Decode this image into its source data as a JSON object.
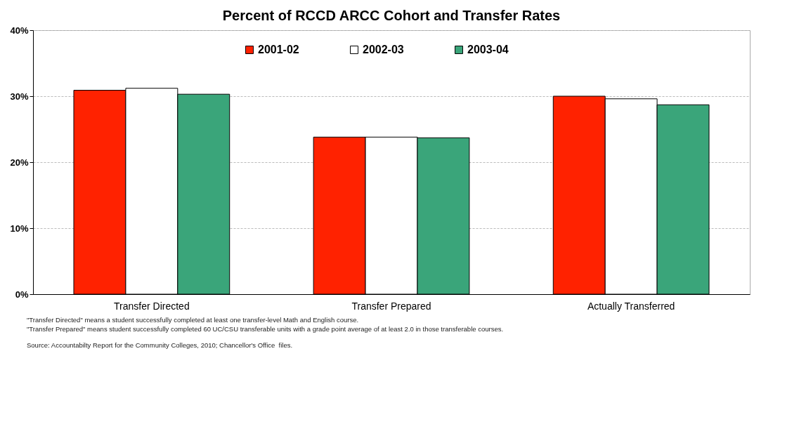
{
  "chart_data": {
    "type": "bar",
    "title": "Percent of RCCD ARCC Cohort and Transfer Rates",
    "categories": [
      "Transfer Directed",
      "Transfer Prepared",
      "Actually Transferred"
    ],
    "series": [
      {
        "name": "2001-02",
        "color": "#ff2200",
        "values": [
          30.9,
          23.8,
          30.0
        ]
      },
      {
        "name": "2002-03",
        "color": "#ffffff",
        "values": [
          31.2,
          23.8,
          29.6
        ]
      },
      {
        "name": "2003-04",
        "color": "#3aa57a",
        "values": [
          30.3,
          23.7,
          28.7
        ]
      }
    ],
    "ylim": [
      0,
      40
    ],
    "yticks": [
      {
        "value": 0,
        "label": "0%"
      },
      {
        "value": 10,
        "label": "10%"
      },
      {
        "value": 20,
        "label": "20%"
      },
      {
        "value": 30,
        "label": "30%"
      },
      {
        "value": 40,
        "label": "40%"
      }
    ],
    "grid": "y",
    "legend": "top",
    "annotations": [
      "\"Transfer Directed\" means a student successfully completed at least one transfer-level Math and English course.",
      "\"Transfer Prepared\" means student successfully completed 60 UC/CSU transferable units with a grade point average of at least 2.0 in those transferable courses.",
      "Source: Accountabilty Report for the Community Colleges, 2010; Chancellor's Office  files."
    ]
  }
}
